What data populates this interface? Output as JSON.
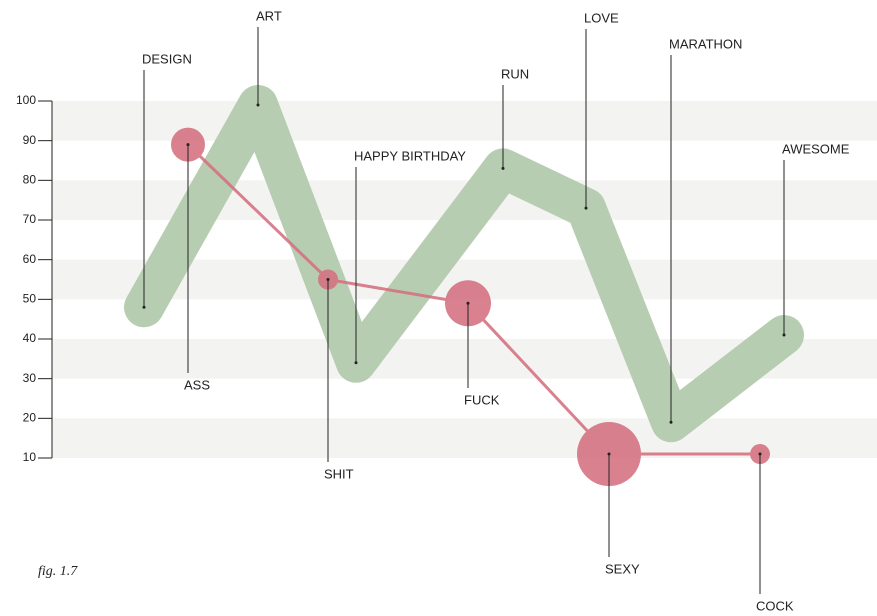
{
  "chart_data": {
    "type": "line",
    "caption": "fig. 1.7",
    "ylim": [
      10,
      100
    ],
    "yticks": [
      10,
      20,
      30,
      40,
      50,
      60,
      70,
      80,
      90,
      100
    ],
    "grid": "bands",
    "series": [
      {
        "type": "line",
        "color": "#b7cdb1",
        "labels": [
          "DESIGN",
          "ART",
          "HAPPY BIRTHDAY",
          "RUN",
          "LOVE",
          "MARATHON",
          "AWESOME"
        ],
        "values": [
          48,
          99,
          34,
          83,
          73,
          19,
          41
        ]
      },
      {
        "type": "bubble",
        "color": "#d4707f",
        "labels": [
          "ASS",
          "SHIT",
          "FUCK",
          "SEXY",
          "COCK"
        ],
        "values": [
          89,
          55,
          49,
          11,
          11
        ],
        "sizes": [
          17,
          10,
          23,
          32,
          10
        ]
      }
    ]
  }
}
